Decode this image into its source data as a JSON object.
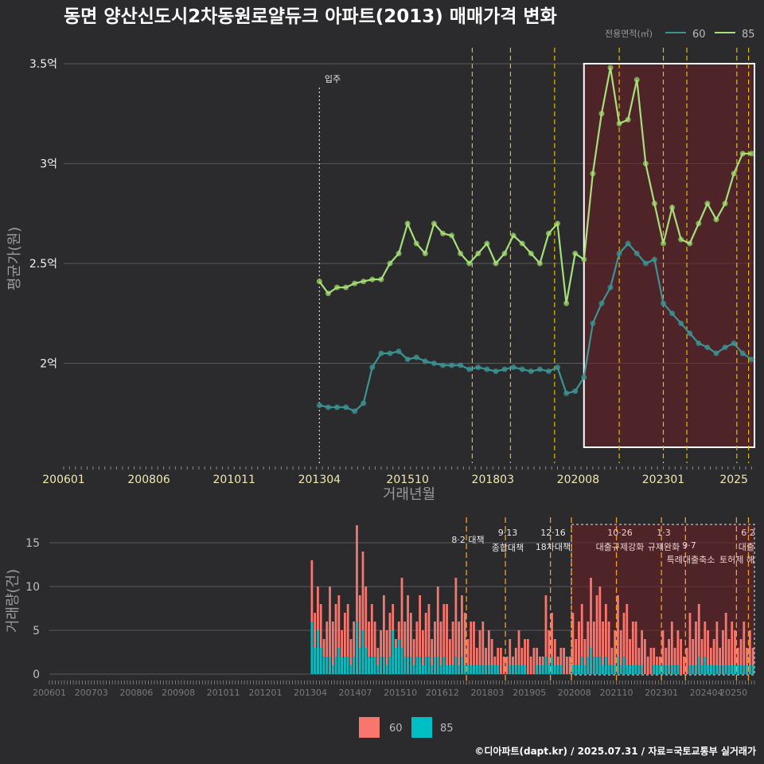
{
  "title": "동면 양산신도시2차동원로얄듀크 아파트(2013) 매매가격 변화",
  "footer": "©디아파트(dapt.kr) / 2025.07.31 / 자료=국토교통부 실거래가",
  "colors": {
    "background": "#2b2b2d",
    "series_60_line": "#3a9494",
    "series_85_line": "#a6e07a",
    "bar_60": "#f8766d",
    "bar_85": "#00bfc4",
    "highlight": "#6b1f24",
    "policy_line": "#e0c000",
    "policy_line_bottom": "#f0a020"
  },
  "top_legend": {
    "title": "전용면적(㎡)",
    "items": [
      "60",
      "85"
    ]
  },
  "bottom_legend": {
    "items": [
      "60",
      "85"
    ]
  },
  "chart_data": [
    {
      "type": "line",
      "ylabel": "평균가(원)",
      "xlabel": "거래년월",
      "xticks": [
        "200601",
        "200806",
        "201011",
        "201304",
        "201510",
        "201803",
        "202008",
        "202301",
        "2025"
      ],
      "yticks": [
        "2억",
        "2.5억",
        "3억",
        "3.5억"
      ],
      "ylim": [
        1.5,
        3.6
      ],
      "annotations": {
        "move_in": "입주"
      },
      "series": [
        {
          "name": "60",
          "x": [
            "2013-04",
            "2013-07",
            "2013-10",
            "2014-01",
            "2014-04",
            "2014-07",
            "2014-10",
            "2015-01",
            "2015-04",
            "2015-07",
            "2015-10",
            "2016-01",
            "2016-04",
            "2016-07",
            "2016-10",
            "2017-01",
            "2017-04",
            "2017-07",
            "2017-10",
            "2018-01",
            "2018-04",
            "2018-07",
            "2018-10",
            "2019-01",
            "2019-04",
            "2019-07",
            "2019-10",
            "2020-01",
            "2020-04",
            "2020-07",
            "2020-10",
            "2021-01",
            "2021-04",
            "2021-07",
            "2021-10",
            "2022-01",
            "2022-04",
            "2022-07",
            "2022-10",
            "2023-01",
            "2023-04",
            "2023-07",
            "2023-10",
            "2024-01",
            "2024-04",
            "2024-07",
            "2024-10",
            "2025-01",
            "2025-04",
            "2025-07"
          ],
          "values": [
            1.79,
            1.78,
            1.78,
            1.78,
            1.76,
            1.8,
            1.98,
            2.05,
            2.05,
            2.06,
            2.02,
            2.03,
            2.01,
            2.0,
            1.99,
            1.99,
            1.99,
            1.97,
            1.98,
            1.97,
            1.96,
            1.97,
            1.98,
            1.97,
            1.96,
            1.97,
            1.96,
            1.98,
            1.85,
            1.86,
            1.93,
            2.2,
            2.3,
            2.38,
            2.55,
            2.6,
            2.55,
            2.5,
            2.52,
            2.3,
            2.25,
            2.2,
            2.15,
            2.1,
            2.08,
            2.05,
            2.08,
            2.1,
            2.05,
            2.02
          ]
        },
        {
          "name": "85",
          "x": [
            "2013-04",
            "2013-07",
            "2013-10",
            "2014-01",
            "2014-04",
            "2014-07",
            "2014-10",
            "2015-01",
            "2015-04",
            "2015-07",
            "2015-10",
            "2016-01",
            "2016-04",
            "2016-07",
            "2016-10",
            "2017-01",
            "2017-04",
            "2017-07",
            "2017-10",
            "2018-01",
            "2018-04",
            "2018-07",
            "2018-10",
            "2019-01",
            "2019-04",
            "2019-07",
            "2019-10",
            "2020-01",
            "2020-04",
            "2020-07",
            "2020-10",
            "2021-01",
            "2021-04",
            "2021-07",
            "2021-10",
            "2022-01",
            "2022-04",
            "2022-07",
            "2022-10",
            "2023-01",
            "2023-04",
            "2023-07",
            "2023-10",
            "2024-01",
            "2024-04",
            "2024-07",
            "2024-10",
            "2025-01",
            "2025-04",
            "2025-07"
          ],
          "values": [
            2.41,
            2.35,
            2.38,
            2.38,
            2.4,
            2.41,
            2.42,
            2.42,
            2.5,
            2.55,
            2.7,
            2.6,
            2.55,
            2.7,
            2.65,
            2.64,
            2.55,
            2.5,
            2.55,
            2.6,
            2.5,
            2.55,
            2.64,
            2.6,
            2.55,
            2.5,
            2.65,
            2.7,
            2.3,
            2.55,
            2.52,
            2.95,
            3.25,
            3.48,
            3.2,
            3.22,
            3.42,
            3.0,
            2.8,
            2.6,
            2.78,
            2.62,
            2.6,
            2.7,
            2.8,
            2.72,
            2.8,
            2.95,
            3.05,
            3.05
          ]
        }
      ]
    },
    {
      "type": "bar",
      "ylabel": "거래량(건)",
      "yticks": [
        "0",
        "5",
        "10",
        "15"
      ],
      "ylim": [
        0,
        17
      ],
      "xticks": [
        "200601",
        "200703",
        "200806",
        "200908",
        "201011",
        "201201",
        "201304",
        "201407",
        "201510",
        "201612",
        "201803",
        "201905",
        "202008",
        "202110",
        "202301",
        "202404",
        "20250"
      ],
      "annotations": {
        "p1_date": "8·2 대책",
        "p2_date": "9·13",
        "p2_name": "종합대책",
        "p3_date": "12·16",
        "p3_name": "18차대책",
        "p4_date": "10·26",
        "p4_name": "대출규제강화",
        "p5_date": "1·3",
        "p5_name": "규제완화",
        "p6_date": "9·7",
        "p6_name": "특례대출축소",
        "p7_name": "토허제 해",
        "p8_date": "6·2",
        "p8_name": "대출"
      },
      "series": [
        {
          "name": "60",
          "x": [
            "2013-04",
            "2013-07",
            "2013-10",
            "2014-01",
            "2014-04",
            "2014-07",
            "2014-10",
            "2015-01",
            "2015-04",
            "2015-07",
            "2015-10",
            "2016-01",
            "2016-04",
            "2016-07",
            "2016-10",
            "2017-01",
            "2017-04",
            "2017-07",
            "2017-10",
            "2018-01",
            "2018-04",
            "2018-07",
            "2018-10",
            "2019-01",
            "2019-04",
            "2019-07",
            "2019-10",
            "2020-01",
            "2020-04",
            "2020-07",
            "2020-10",
            "2021-01",
            "2021-04",
            "2021-07",
            "2021-10",
            "2022-01",
            "2022-04",
            "2022-07",
            "2022-10",
            "2023-01",
            "2023-04",
            "2023-07",
            "2023-10",
            "2024-01",
            "2024-04",
            "2024-07",
            "2024-10",
            "2025-01",
            "2025-04",
            "2025-07"
          ],
          "values": [
            13,
            8,
            10,
            9,
            8,
            17,
            10,
            6,
            9,
            8,
            11,
            7,
            9,
            8,
            10,
            8,
            11,
            7,
            6,
            6,
            4,
            3,
            4,
            5,
            4,
            3,
            9,
            4,
            3,
            7,
            8,
            11,
            10,
            6,
            9,
            8,
            6,
            4,
            3,
            5,
            6,
            4,
            7,
            8,
            5,
            6,
            7,
            5,
            6,
            3
          ]
        },
        {
          "name": "85",
          "x": [
            "2013-04",
            "2013-07",
            "2013-10",
            "2014-01",
            "2014-04",
            "2014-07",
            "2014-10",
            "2015-01",
            "2015-04",
            "2015-07",
            "2015-10",
            "2016-01",
            "2016-04",
            "2016-07",
            "2016-10",
            "2017-01",
            "2017-04",
            "2017-07",
            "2017-10",
            "2018-01",
            "2018-04",
            "2018-07",
            "2018-10",
            "2019-01",
            "2019-04",
            "2019-07",
            "2019-10",
            "2020-01",
            "2020-04",
            "2020-07",
            "2020-10",
            "2021-01",
            "2021-04",
            "2021-07",
            "2021-10",
            "2022-01",
            "2022-04",
            "2022-07",
            "2022-10",
            "2023-01",
            "2023-04",
            "2023-07",
            "2023-10",
            "2024-01",
            "2024-04",
            "2024-07",
            "2024-10",
            "2025-01",
            "2025-04",
            "2025-07"
          ],
          "values": [
            6,
            3,
            2,
            3,
            2,
            6,
            3,
            2,
            2,
            5,
            3,
            2,
            2,
            2,
            2,
            1,
            2,
            1,
            1,
            1,
            1,
            0,
            1,
            1,
            0,
            1,
            2,
            1,
            0,
            1,
            2,
            3,
            2,
            1,
            2,
            1,
            1,
            0,
            1,
            1,
            1,
            0,
            1,
            2,
            1,
            1,
            1,
            1,
            1,
            1
          ]
        }
      ]
    }
  ]
}
